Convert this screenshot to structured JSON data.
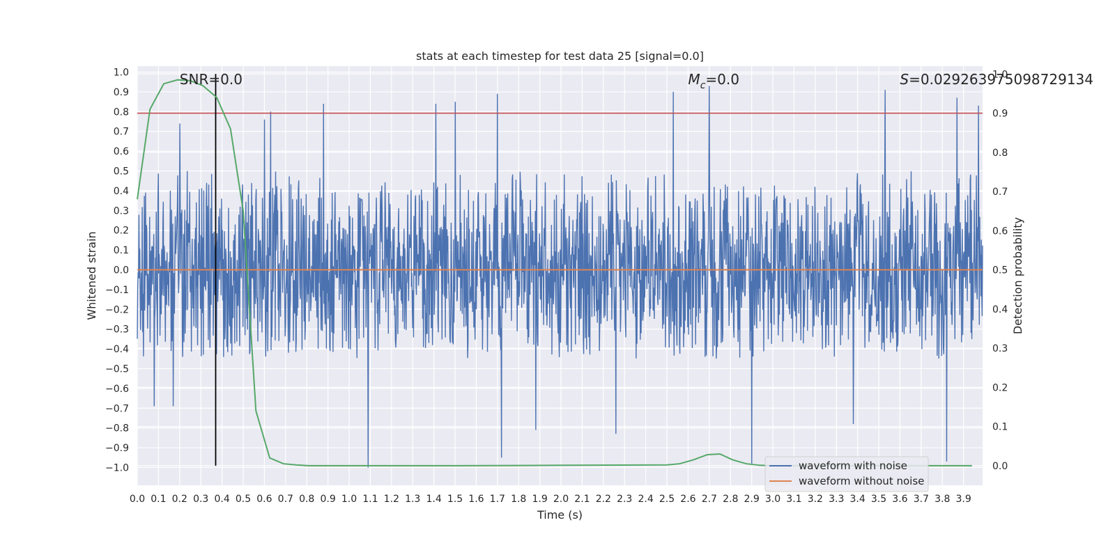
{
  "chart_data": {
    "type": "line",
    "title": "stats at each timestep for test data 25 [signal=0.0]",
    "xlabel": "Time (s)",
    "ylabel": "Whitened strain",
    "ylabel_right": "Detection probability",
    "xlim": [
      0.0,
      3.99
    ],
    "ylim": [
      -1.09,
      1.03
    ],
    "ylim_right": [
      -0.05,
      1.02
    ],
    "x_ticks": [
      "0.0",
      "0.1",
      "0.2",
      "0.3",
      "0.4",
      "0.5",
      "0.6",
      "0.7",
      "0.8",
      "0.9",
      "1.0",
      "1.1",
      "1.2",
      "1.3",
      "1.4",
      "1.5",
      "1.6",
      "1.7",
      "1.8",
      "1.9",
      "2.0",
      "2.1",
      "2.2",
      "2.3",
      "2.4",
      "2.5",
      "2.6",
      "2.7",
      "2.8",
      "2.9",
      "3.0",
      "3.1",
      "3.2",
      "3.3",
      "3.4",
      "3.5",
      "3.6",
      "3.7",
      "3.8",
      "3.9"
    ],
    "y_ticks": [
      "1.0",
      "0.9",
      "0.8",
      "0.7",
      "0.6",
      "0.5",
      "0.4",
      "0.3",
      "0.2",
      "0.1",
      "0.0",
      "−0.1",
      "−0.2",
      "−0.3",
      "−0.4",
      "−0.5",
      "−0.6",
      "−0.7",
      "−0.8",
      "−0.9",
      "−1.0"
    ],
    "y_ticks_right": [
      "0.0",
      "0.1",
      "0.2",
      "0.3",
      "0.4",
      "0.5",
      "0.6",
      "0.7",
      "0.8",
      "0.9",
      "1.0"
    ],
    "annotations": {
      "snr": "SNR=0.0",
      "mc_symbol": "M",
      "mc_sub": "c",
      "mc_value": "=0.0",
      "s_symbol": "S",
      "s_value": "=0.029263975098729134"
    },
    "noise_envelope": {
      "typical_min": -0.45,
      "typical_max": 0.5,
      "peaks": [
        {
          "t": 0.2,
          "v": 0.74
        },
        {
          "t": 0.6,
          "v": 0.76
        },
        {
          "t": 0.63,
          "v": 0.8
        },
        {
          "t": 0.88,
          "v": 0.84
        },
        {
          "t": 1.41,
          "v": 0.84
        },
        {
          "t": 1.5,
          "v": 0.85
        },
        {
          "t": 1.7,
          "v": 0.89
        },
        {
          "t": 2.53,
          "v": 0.9
        },
        {
          "t": 2.7,
          "v": 0.93
        },
        {
          "t": 3.53,
          "v": 0.91
        },
        {
          "t": 3.87,
          "v": 0.87
        },
        {
          "t": 3.97,
          "v": 0.83
        }
      ],
      "troughs": [
        {
          "t": 1.09,
          "v": -1.0
        },
        {
          "t": 1.72,
          "v": -0.95
        },
        {
          "t": 1.88,
          "v": -0.81
        },
        {
          "t": 2.26,
          "v": -0.83
        },
        {
          "t": 2.9,
          "v": -0.98
        },
        {
          "t": 3.38,
          "v": -0.78
        },
        {
          "t": 3.82,
          "v": -0.97
        },
        {
          "t": 0.08,
          "v": -0.69
        },
        {
          "t": 0.17,
          "v": -0.69
        }
      ]
    },
    "threshold_probability": 0.9,
    "marker_time": 0.37,
    "series": [
      {
        "name": "waveform with noise",
        "color": "#4c72b0",
        "axis": "left",
        "kind": "noise"
      },
      {
        "name": "waveform without noise",
        "color": "#dd8452",
        "axis": "left",
        "x": [
          0.0,
          3.99
        ],
        "y": [
          0.0,
          0.0
        ]
      },
      {
        "name": "detection probability",
        "color": "#55a868",
        "axis": "right",
        "x": [
          0.0,
          0.06,
          0.125,
          0.19,
          0.25,
          0.31,
          0.375,
          0.44,
          0.5,
          0.56,
          0.625,
          0.69,
          0.75,
          0.81,
          1.0,
          1.5,
          2.0,
          2.5,
          2.56,
          2.625,
          2.69,
          2.75,
          2.81,
          2.875,
          2.94,
          3.0,
          3.5,
          3.94
        ],
        "y": [
          0.68,
          0.91,
          0.975,
          0.985,
          0.983,
          0.97,
          0.94,
          0.86,
          0.65,
          0.14,
          0.02,
          0.005,
          0.002,
          0.0,
          0.0,
          0.0,
          0.001,
          0.002,
          0.005,
          0.015,
          0.028,
          0.03,
          0.015,
          0.005,
          0.001,
          0.0,
          0.0,
          0.0
        ]
      }
    ],
    "legend": {
      "position": "lower-right",
      "entries": [
        "waveform with noise",
        "waveform without noise"
      ]
    },
    "colors": {
      "background": "#eaeaf2",
      "grid": "#ffffff",
      "threshold": "#c44e52",
      "marker": "#000000"
    }
  }
}
